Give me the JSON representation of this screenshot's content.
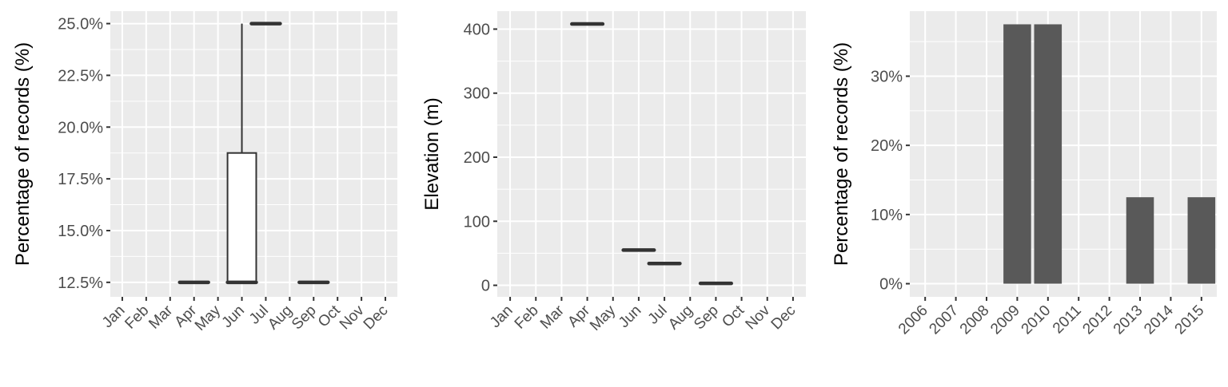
{
  "colors": {
    "panel_background": "#ebebeb",
    "grid": "#ffffff",
    "tick": "#333333",
    "tick_label": "#4d4d4d",
    "box_outline": "#333333",
    "bar_fill": "#595959"
  },
  "chart_data": [
    {
      "type": "boxplot",
      "ylabel": "Percentage of records (%)",
      "categories": [
        "Jan",
        "Feb",
        "Mar",
        "Apr",
        "May",
        "Jun",
        "Jul",
        "Aug",
        "Sep",
        "Oct",
        "Nov",
        "Dec"
      ],
      "y_ticks": [
        12.5,
        15.0,
        17.5,
        20.0,
        22.5,
        25.0
      ],
      "y_tick_labels": [
        "12.5%",
        "15.0%",
        "17.5%",
        "20.0%",
        "22.5%",
        "25.0%"
      ],
      "ylim": [
        11.8,
        25.6
      ],
      "boxes": [
        {
          "category": "Apr",
          "min": 12.5,
          "q1": 12.5,
          "median": 12.5,
          "q3": 12.5,
          "max": 12.5
        },
        {
          "category": "Jun",
          "min": 12.5,
          "q1": 12.5,
          "median": 12.5,
          "q3": 18.75,
          "max": 25.0
        },
        {
          "category": "Jul",
          "min": 25.0,
          "q1": 25.0,
          "median": 25.0,
          "q3": 25.0,
          "max": 25.0
        },
        {
          "category": "Sep",
          "min": 12.5,
          "q1": 12.5,
          "median": 12.5,
          "q3": 12.5,
          "max": 12.5
        }
      ],
      "grid": true
    },
    {
      "type": "boxplot",
      "ylabel": "Elevation (m)",
      "categories": [
        "Jan",
        "Feb",
        "Mar",
        "Apr",
        "May",
        "Jun",
        "Jul",
        "Aug",
        "Sep",
        "Oct",
        "Nov",
        "Dec"
      ],
      "y_ticks": [
        0,
        100,
        200,
        300,
        400
      ],
      "y_tick_labels": [
        "0",
        "100",
        "200",
        "300",
        "400"
      ],
      "ylim": [
        -18,
        428
      ],
      "boxes": [
        {
          "category": "Apr",
          "min": 408,
          "q1": 408,
          "median": 408,
          "q3": 408,
          "max": 408
        },
        {
          "category": "Jun",
          "min": 55,
          "q1": 55,
          "median": 55,
          "q3": 55,
          "max": 55
        },
        {
          "category": "Jul",
          "min": 34,
          "q1": 34,
          "median": 34,
          "q3": 34,
          "max": 34
        },
        {
          "category": "Sep",
          "min": 3,
          "q1": 3,
          "median": 3,
          "q3": 3,
          "max": 3
        }
      ],
      "grid": true
    },
    {
      "type": "bar",
      "ylabel": "Percentage of records (%)",
      "categories": [
        "2006",
        "2007",
        "2008",
        "2009",
        "2010",
        "2011",
        "2012",
        "2013",
        "2014",
        "2015"
      ],
      "values": [
        0,
        0,
        0,
        37.5,
        37.5,
        0,
        0,
        12.5,
        0,
        12.5
      ],
      "y_ticks": [
        0,
        10,
        20,
        30
      ],
      "y_tick_labels": [
        "0%",
        "10%",
        "20%",
        "30%"
      ],
      "ylim": [
        -1.9,
        39.4
      ],
      "grid": true
    }
  ]
}
